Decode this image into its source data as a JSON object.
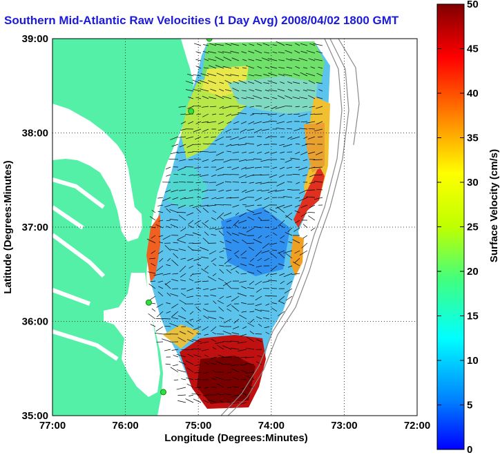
{
  "title": "Southern Mid-Atlantic Raw Velocities (1 Day Avg) 2008/04/02 1800 GMT",
  "map": {
    "xlabel": "Longitude (Degrees:Minutes)",
    "ylabel": "Latitude (Degrees:Minutes)",
    "lon_range": [
      -77,
      -72
    ],
    "lat_range": [
      35,
      39
    ],
    "x_ticks": [
      {
        "value": -77,
        "label": "77:00"
      },
      {
        "value": -76,
        "label": "76:00"
      },
      {
        "value": -75,
        "label": "75:00"
      },
      {
        "value": -74,
        "label": "74:00"
      },
      {
        "value": -73,
        "label": "73:00"
      },
      {
        "value": -72,
        "label": "72:00"
      }
    ],
    "y_ticks": [
      {
        "value": 35,
        "label": "35:00"
      },
      {
        "value": 36,
        "label": "36:00"
      },
      {
        "value": 37,
        "label": "37:00"
      },
      {
        "value": 38,
        "label": "38:00"
      },
      {
        "value": 39,
        "label": "39:00"
      }
    ],
    "grid": "dotted",
    "land_color": "#55f0a8",
    "coastal_stations": [
      {
        "lon": -74.85,
        "lat": 39.0
      },
      {
        "lon": -75.1,
        "lat": 38.23
      },
      {
        "lon": -75.68,
        "lat": 36.2
      },
      {
        "lon": -75.48,
        "lat": 35.25
      }
    ]
  },
  "colorbar": {
    "label": "Surface Velocity (cm/s)",
    "range": [
      0,
      50
    ],
    "ticks": [
      {
        "value": 0,
        "label": "0"
      },
      {
        "value": 5,
        "label": "5"
      },
      {
        "value": 10,
        "label": "10"
      },
      {
        "value": 15,
        "label": "15"
      },
      {
        "value": 20,
        "label": "20"
      },
      {
        "value": 25,
        "label": "25"
      },
      {
        "value": 30,
        "label": "30"
      },
      {
        "value": 35,
        "label": "35"
      },
      {
        "value": 40,
        "label": "40"
      },
      {
        "value": 45,
        "label": "45"
      },
      {
        "value": 50,
        "label": "50"
      }
    ],
    "colormap": "jet"
  }
}
